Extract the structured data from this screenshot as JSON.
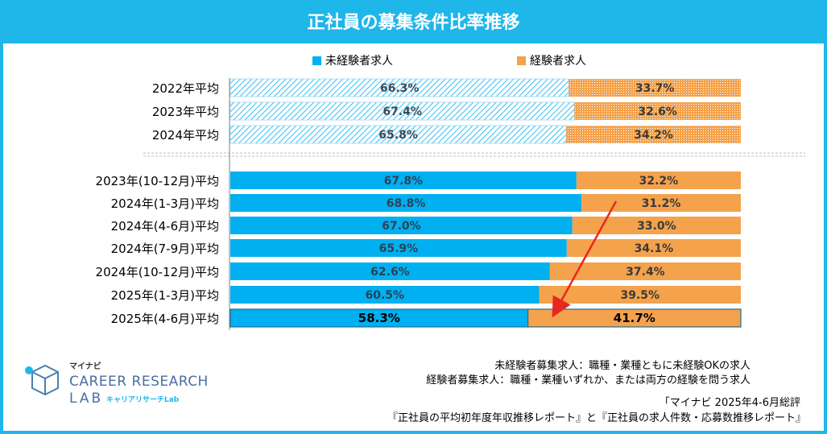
{
  "title": "正社員の募集条件比率推移",
  "legend": {
    "inexperienced": "未経験者求人",
    "experienced": "経験者求人"
  },
  "colors": {
    "border": "#1fb6ea",
    "inexperienced": "#00b0f0",
    "experienced": "#f4a24c",
    "arrow": "#e8281e"
  },
  "chart_data": {
    "type": "bar",
    "orientation": "horizontal-stacked-100",
    "categories": [
      "2022年平均",
      "2023年平均",
      "2024年平均",
      "2023年(10-12月)平均",
      "2024年(1-3月)平均",
      "2024年(4-6月)平均",
      "2024年(7-9月)平均",
      "2024年(10-12月)平均",
      "2025年(1-3月)平均",
      "2025年(4-6月)平均"
    ],
    "series": [
      {
        "name": "未経験者求人",
        "values": [
          66.3,
          67.4,
          65.8,
          67.8,
          68.8,
          67.0,
          65.9,
          62.6,
          60.5,
          58.3
        ]
      },
      {
        "name": "経験者求人",
        "values": [
          33.7,
          32.6,
          34.2,
          32.2,
          31.2,
          33.0,
          34.1,
          37.4,
          39.5,
          41.7
        ]
      }
    ],
    "data_labels": [
      [
        "66.3%",
        "33.7%"
      ],
      [
        "67.4%",
        "32.6%"
      ],
      [
        "65.8%",
        "34.2%"
      ],
      [
        "67.8%",
        "32.2%"
      ],
      [
        "68.8%",
        "31.2%"
      ],
      [
        "67.0%",
        "33.0%"
      ],
      [
        "65.9%",
        "34.1%"
      ],
      [
        "62.6%",
        "37.4%"
      ],
      [
        "60.5%",
        "39.5%"
      ],
      [
        "58.3%",
        "41.7%"
      ]
    ],
    "annual_rows": 3,
    "highlight_last": true,
    "xlim": [
      0,
      100
    ],
    "legend_position": "top"
  },
  "footnotes": {
    "def_inexperienced": "未経験者募集求人：職種・業種ともに未経験OKの求人",
    "def_experienced": "経験者募集求人：職種・業種いずれか、または両方の経験を問う求人",
    "source1": "「マイナビ 2025年4-6月総評",
    "source2": "『正社員の平均初年度年収推移レポート』と『正社員の求人件数・応募数推移レポート』"
  },
  "logo": {
    "brand": "マイナビ",
    "line1": "CAREER RESEARCH",
    "line2a": "LAB",
    "line2b": "キャリアリサーチLab"
  }
}
